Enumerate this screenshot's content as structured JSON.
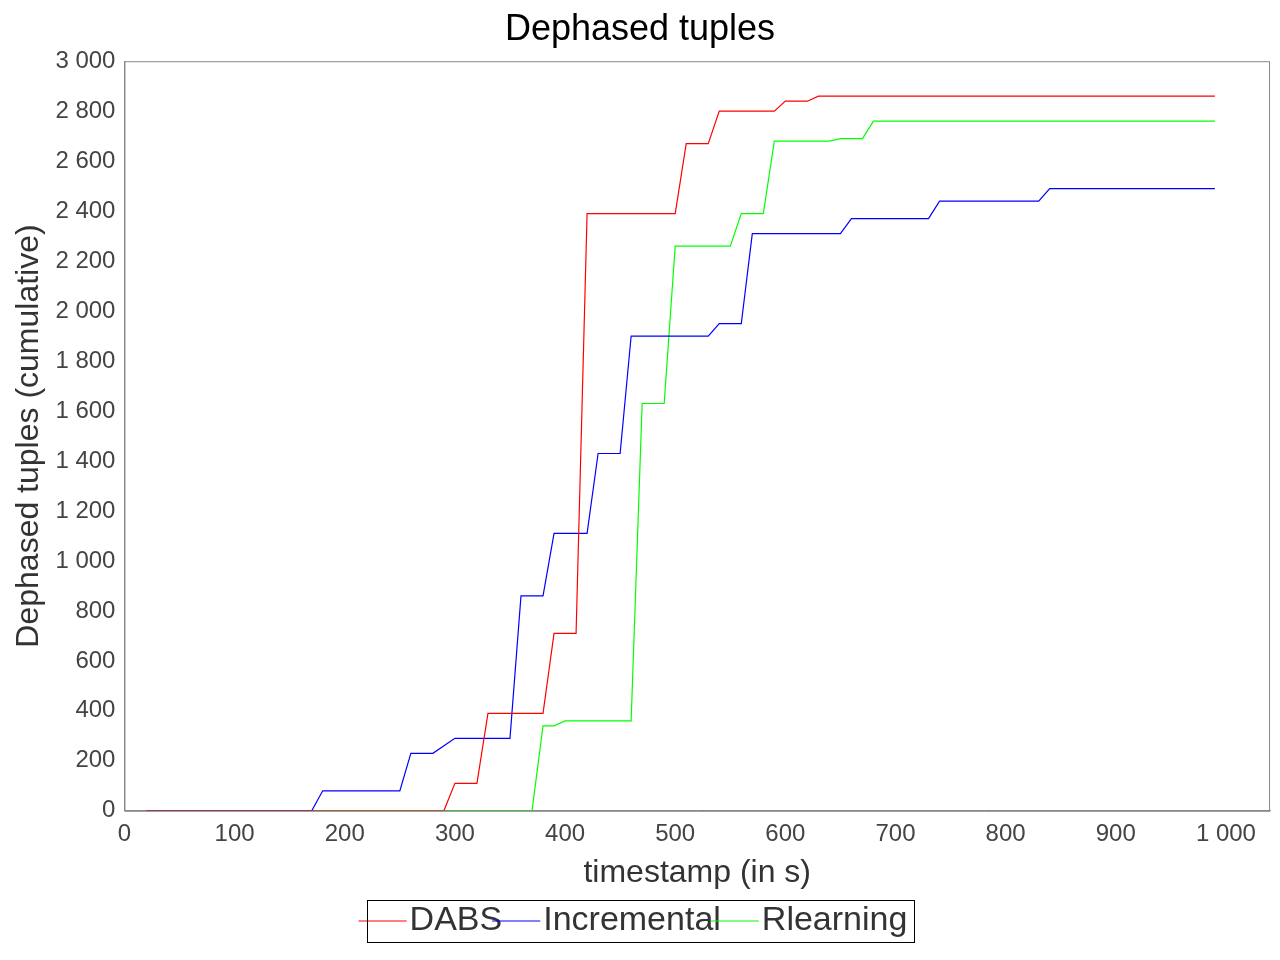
{
  "chart_data": {
    "type": "line",
    "title": "Dephased tuples",
    "x_label": "timestamp (in s)",
    "y_label": "Dephased tuples (cumulative)",
    "xlim": [
      0,
      1040
    ],
    "xticks": [
      0,
      100,
      200,
      300,
      400,
      500,
      600,
      700,
      800,
      900,
      {
        "value": 1000,
        "label": "1 000"
      }
    ],
    "ylim": [
      0,
      3000
    ],
    "yticks": [
      0,
      200,
      400,
      600,
      800,
      {
        "value": 1000,
        "label": "1 000"
      },
      {
        "value": 1200,
        "label": "1 200"
      },
      {
        "value": 1400,
        "label": "1 400"
      },
      {
        "value": 1600,
        "label": "1 600"
      },
      {
        "value": 1800,
        "label": "1 800"
      },
      {
        "value": 2000,
        "label": "2 000"
      },
      {
        "value": 2200,
        "label": "2 200"
      },
      {
        "value": 2400,
        "label": "2 400"
      },
      {
        "value": 2600,
        "label": "2 600"
      },
      {
        "value": 2800,
        "label": "2 800"
      },
      {
        "value": 3000,
        "label": "3 000"
      }
    ],
    "grid": false,
    "legend": "bottom",
    "marker": "none",
    "series": [
      {
        "name": "DABS",
        "color": "#ff0000",
        "x": [
          20,
          290,
          300,
          320,
          330,
          380,
          390,
          410,
          420,
          500,
          510,
          530,
          540,
          590,
          600,
          620,
          630,
          990
        ],
        "values": [
          0,
          0,
          110,
          110,
          390,
          390,
          710,
          710,
          2390,
          2390,
          2670,
          2670,
          2800,
          2800,
          2840,
          2840,
          2860,
          2860
        ]
      },
      {
        "name": "Incremental",
        "color": "#0000ff",
        "x": [
          20,
          170,
          180,
          250,
          260,
          280,
          300,
          350,
          360,
          380,
          390,
          420,
          430,
          450,
          460,
          530,
          540,
          560,
          570,
          650,
          660,
          730,
          740,
          830,
          840,
          990
        ],
        "values": [
          0,
          0,
          80,
          80,
          230,
          230,
          290,
          290,
          860,
          860,
          1110,
          1110,
          1430,
          1430,
          1900,
          1900,
          1950,
          1950,
          2310,
          2310,
          2370,
          2370,
          2440,
          2440,
          2490,
          2490
        ]
      },
      {
        "name": "Rlearning",
        "color": "#00ff00",
        "x": [
          20,
          370,
          380,
          390,
          400,
          460,
          470,
          490,
          500,
          550,
          560,
          580,
          590,
          640,
          650,
          670,
          680,
          990
        ],
        "values": [
          0,
          0,
          340,
          340,
          360,
          360,
          1630,
          1630,
          2260,
          2260,
          2390,
          2390,
          2680,
          2680,
          2690,
          2690,
          2760,
          2760
        ]
      }
    ]
  }
}
